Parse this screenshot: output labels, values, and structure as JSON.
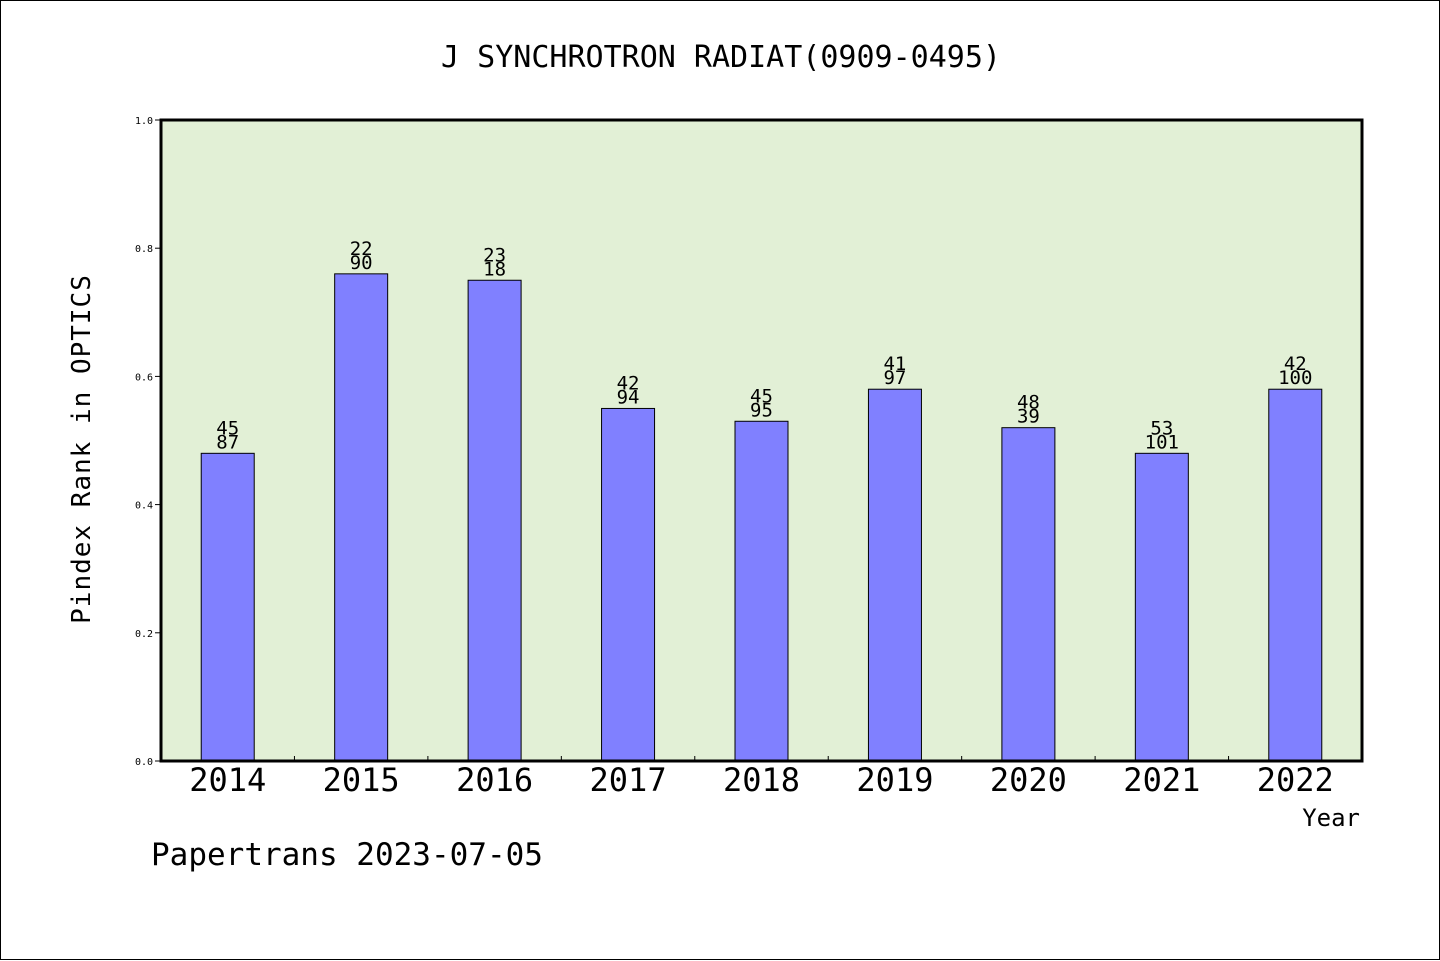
{
  "chart_data": {
    "type": "bar",
    "title": "J SYNCHROTRON RADIAT(0909-0495)",
    "xlabel": "Year",
    "ylabel": "Pindex Rank in OPTICS",
    "ylim": [
      0,
      1.0
    ],
    "yticks": [
      "0.0",
      "0.2",
      "0.4",
      "0.6",
      "0.8",
      "1.0"
    ],
    "grid": false,
    "categories": [
      "2014",
      "2015",
      "2016",
      "2017",
      "2018",
      "2019",
      "2020",
      "2021",
      "2022"
    ],
    "values": [
      0.48,
      0.76,
      0.75,
      0.55,
      0.53,
      0.58,
      0.52,
      0.48,
      0.58
    ],
    "labels_top": [
      "45",
      "22",
      "23",
      "42",
      "45",
      "41",
      "48",
      "53",
      "42"
    ],
    "labels_bottom": [
      "87",
      "90",
      "18",
      "94",
      "95",
      "97",
      "39",
      "101",
      "100"
    ],
    "bar_color": "#8080ff",
    "plot_background": "#e2f0d6"
  },
  "footer": "Papertrans 2023-07-05"
}
